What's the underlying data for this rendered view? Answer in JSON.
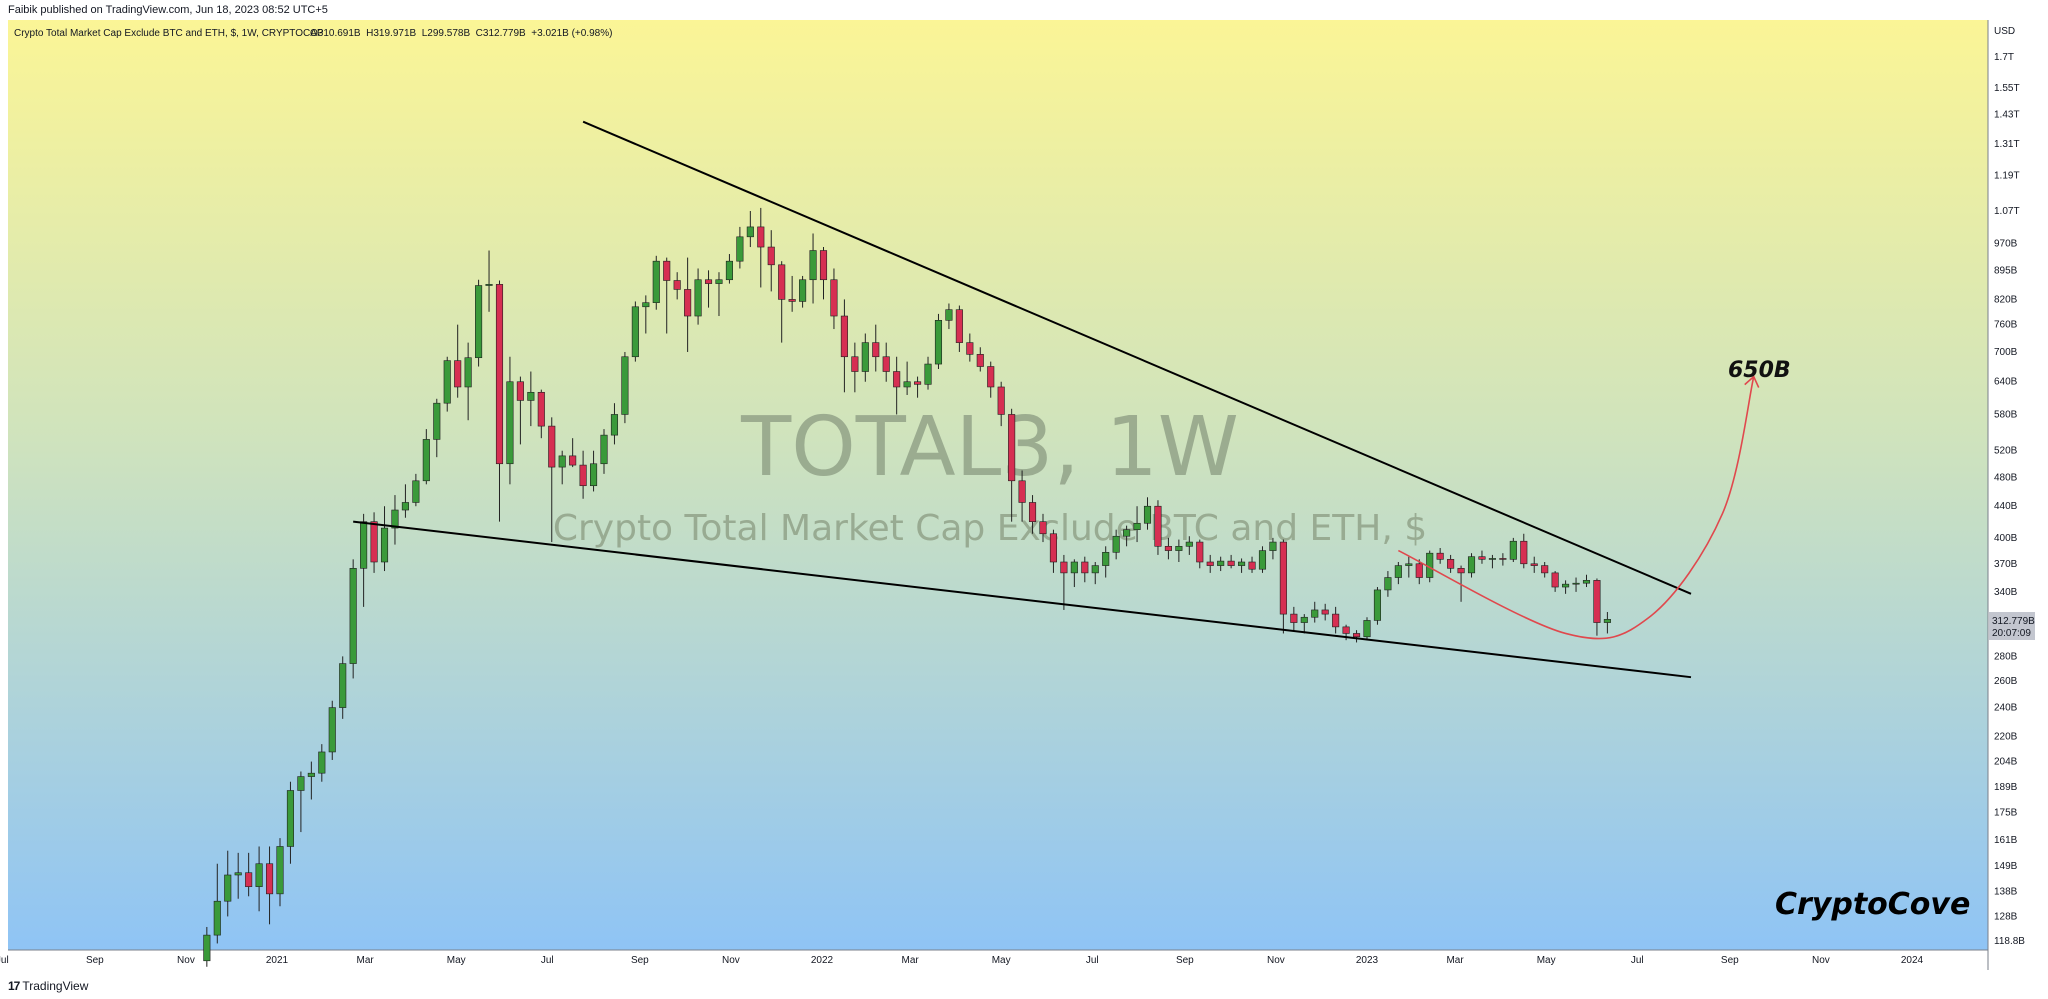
{
  "header": {
    "publisher": "Faibik published on TradingView.com, Jun 18, 2023 08:52 UTC+5"
  },
  "legend": {
    "symbol": "Crypto Total Market Cap Exclude BTC and ETH, $, 1W, CRYPTOCAP",
    "ohlc": "O310.691B  H319.971B  L299.578B  C312.779B  +3.021B (+0.98%)"
  },
  "watermark": {
    "ticker": "TOTAL3, 1W",
    "description": "Crypto Total Market Cap Exclude BTC and ETH, $"
  },
  "annotations": {
    "target": "650B",
    "brand": "CryptoCove"
  },
  "footer": {
    "logo_mark": "17",
    "logo_text": "TradingView"
  },
  "colors": {
    "up": "#3a9a3a",
    "down": "#d62f52",
    "curve": "#e0484d",
    "line": "#000000",
    "bg_top": "#fbf596",
    "bg_bottom": "#8fc4f5"
  },
  "chart_data": {
    "type": "candlestick",
    "title": "Crypto Total Market Cap Exclude BTC and ETH, $, 1W, CRYPTOCAP",
    "price_axis": {
      "unit": "USD",
      "scale": "log",
      "ticks": [
        "1.7T",
        "1.55T",
        "1.43T",
        "1.31T",
        "1.19T",
        "1.07T",
        "970B",
        "895B",
        "820B",
        "760B",
        "700B",
        "640B",
        "580B",
        "520B",
        "480B",
        "440B",
        "400B",
        "370B",
        "340B",
        "280B",
        "260B",
        "240B",
        "220B",
        "204B",
        "189B",
        "175B",
        "161B",
        "149B",
        "138B",
        "128B",
        "118.8B"
      ],
      "last_price": "312.779B",
      "countdown": "20:07:09"
    },
    "time_axis": {
      "ticks": [
        "Jul",
        "Sep",
        "Nov",
        "2021",
        "Mar",
        "May",
        "Jul",
        "Sep",
        "Nov",
        "2022",
        "Mar",
        "May",
        "Jul",
        "Sep",
        "Nov",
        "2023",
        "Mar",
        "May",
        "Jul",
        "Sep",
        "Nov",
        "2024"
      ]
    },
    "candles": [
      {
        "t": "2020-11-15",
        "o": 112,
        "h": 124,
        "l": 110,
        "c": 121
      },
      {
        "t": "2020-11-22",
        "o": 121,
        "h": 150,
        "l": 118,
        "c": 134
      },
      {
        "t": "2020-11-29",
        "o": 134,
        "h": 156,
        "l": 128,
        "c": 145
      },
      {
        "t": "2020-12-06",
        "o": 145,
        "h": 155,
        "l": 135,
        "c": 146
      },
      {
        "t": "2020-12-13",
        "o": 146,
        "h": 155,
        "l": 136,
        "c": 140
      },
      {
        "t": "2020-12-20",
        "o": 140,
        "h": 158,
        "l": 130,
        "c": 150
      },
      {
        "t": "2020-12-27",
        "o": 150,
        "h": 158,
        "l": 125,
        "c": 137
      },
      {
        "t": "2021-01-03",
        "o": 137,
        "h": 162,
        "l": 132,
        "c": 158
      },
      {
        "t": "2021-01-10",
        "o": 158,
        "h": 192,
        "l": 150,
        "c": 187
      },
      {
        "t": "2021-01-17",
        "o": 187,
        "h": 198,
        "l": 165,
        "c": 195
      },
      {
        "t": "2021-01-24",
        "o": 195,
        "h": 204,
        "l": 182,
        "c": 197
      },
      {
        "t": "2021-01-31",
        "o": 197,
        "h": 215,
        "l": 192,
        "c": 210
      },
      {
        "t": "2021-02-07",
        "o": 210,
        "h": 245,
        "l": 205,
        "c": 240
      },
      {
        "t": "2021-02-14",
        "o": 240,
        "h": 280,
        "l": 232,
        "c": 274
      },
      {
        "t": "2021-02-21",
        "o": 274,
        "h": 375,
        "l": 262,
        "c": 365
      },
      {
        "t": "2021-02-28",
        "o": 365,
        "h": 430,
        "l": 325,
        "c": 420
      },
      {
        "t": "2021-03-07",
        "o": 420,
        "h": 432,
        "l": 360,
        "c": 372
      },
      {
        "t": "2021-03-14",
        "o": 372,
        "h": 440,
        "l": 362,
        "c": 412
      },
      {
        "t": "2021-03-21",
        "o": 412,
        "h": 455,
        "l": 392,
        "c": 435
      },
      {
        "t": "2021-03-28",
        "o": 435,
        "h": 470,
        "l": 425,
        "c": 445
      },
      {
        "t": "2021-04-04",
        "o": 445,
        "h": 485,
        "l": 440,
        "c": 475
      },
      {
        "t": "2021-04-11",
        "o": 475,
        "h": 555,
        "l": 470,
        "c": 538
      },
      {
        "t": "2021-04-18",
        "o": 538,
        "h": 608,
        "l": 510,
        "c": 600
      },
      {
        "t": "2021-04-25",
        "o": 600,
        "h": 690,
        "l": 585,
        "c": 682
      },
      {
        "t": "2021-05-02",
        "o": 682,
        "h": 760,
        "l": 610,
        "c": 630
      },
      {
        "t": "2021-05-09",
        "o": 630,
        "h": 720,
        "l": 570,
        "c": 688
      },
      {
        "t": "2021-05-16",
        "o": 688,
        "h": 870,
        "l": 670,
        "c": 855
      },
      {
        "t": "2021-05-23",
        "o": 855,
        "h": 950,
        "l": 790,
        "c": 858
      },
      {
        "t": "2021-05-30",
        "o": 858,
        "h": 868,
        "l": 420,
        "c": 500
      },
      {
        "t": "2021-06-06",
        "o": 500,
        "h": 690,
        "l": 470,
        "c": 640
      },
      {
        "t": "2021-06-13",
        "o": 640,
        "h": 650,
        "l": 530,
        "c": 605
      },
      {
        "t": "2021-06-20",
        "o": 605,
        "h": 660,
        "l": 560,
        "c": 620
      },
      {
        "t": "2021-06-27",
        "o": 620,
        "h": 625,
        "l": 540,
        "c": 560
      },
      {
        "t": "2021-07-04",
        "o": 560,
        "h": 575,
        "l": 395,
        "c": 495
      },
      {
        "t": "2021-07-11",
        "o": 495,
        "h": 520,
        "l": 470,
        "c": 512
      },
      {
        "t": "2021-07-18",
        "o": 512,
        "h": 540,
        "l": 495,
        "c": 498
      },
      {
        "t": "2021-07-25",
        "o": 498,
        "h": 520,
        "l": 450,
        "c": 468
      },
      {
        "t": "2021-08-01",
        "o": 468,
        "h": 520,
        "l": 460,
        "c": 500
      },
      {
        "t": "2021-08-08",
        "o": 500,
        "h": 555,
        "l": 485,
        "c": 545
      },
      {
        "t": "2021-08-15",
        "o": 545,
        "h": 600,
        "l": 530,
        "c": 580
      },
      {
        "t": "2021-08-22",
        "o": 580,
        "h": 700,
        "l": 565,
        "c": 690
      },
      {
        "t": "2021-08-29",
        "o": 690,
        "h": 815,
        "l": 680,
        "c": 802
      },
      {
        "t": "2021-09-05",
        "o": 802,
        "h": 830,
        "l": 740,
        "c": 812
      },
      {
        "t": "2021-09-12",
        "o": 812,
        "h": 935,
        "l": 795,
        "c": 920
      },
      {
        "t": "2021-09-19",
        "o": 920,
        "h": 930,
        "l": 740,
        "c": 868
      },
      {
        "t": "2021-09-26",
        "o": 868,
        "h": 890,
        "l": 820,
        "c": 845
      },
      {
        "t": "2021-10-03",
        "o": 845,
        "h": 930,
        "l": 700,
        "c": 780
      },
      {
        "t": "2021-10-10",
        "o": 780,
        "h": 900,
        "l": 760,
        "c": 870
      },
      {
        "t": "2021-10-17",
        "o": 870,
        "h": 895,
        "l": 800,
        "c": 860
      },
      {
        "t": "2021-10-24",
        "o": 860,
        "h": 890,
        "l": 780,
        "c": 870
      },
      {
        "t": "2021-10-31",
        "o": 870,
        "h": 940,
        "l": 860,
        "c": 920
      },
      {
        "t": "2021-11-07",
        "o": 920,
        "h": 1020,
        "l": 900,
        "c": 990
      },
      {
        "t": "2021-11-14",
        "o": 990,
        "h": 1070,
        "l": 960,
        "c": 1020
      },
      {
        "t": "2021-11-21",
        "o": 1020,
        "h": 1080,
        "l": 850,
        "c": 960
      },
      {
        "t": "2021-11-28",
        "o": 960,
        "h": 1010,
        "l": 840,
        "c": 910
      },
      {
        "t": "2021-12-05",
        "o": 910,
        "h": 920,
        "l": 720,
        "c": 820
      },
      {
        "t": "2021-12-12",
        "o": 820,
        "h": 880,
        "l": 790,
        "c": 815
      },
      {
        "t": "2021-12-19",
        "o": 815,
        "h": 880,
        "l": 800,
        "c": 870
      },
      {
        "t": "2021-12-26",
        "o": 870,
        "h": 1000,
        "l": 810,
        "c": 950
      },
      {
        "t": "2022-01-02",
        "o": 950,
        "h": 960,
        "l": 820,
        "c": 870
      },
      {
        "t": "2022-01-09",
        "o": 870,
        "h": 900,
        "l": 750,
        "c": 780
      },
      {
        "t": "2022-01-16",
        "o": 780,
        "h": 820,
        "l": 620,
        "c": 690
      },
      {
        "t": "2022-01-23",
        "o": 690,
        "h": 720,
        "l": 620,
        "c": 660
      },
      {
        "t": "2022-01-30",
        "o": 660,
        "h": 740,
        "l": 640,
        "c": 720
      },
      {
        "t": "2022-02-06",
        "o": 720,
        "h": 760,
        "l": 660,
        "c": 690
      },
      {
        "t": "2022-02-13",
        "o": 690,
        "h": 720,
        "l": 640,
        "c": 660
      },
      {
        "t": "2022-02-20",
        "o": 660,
        "h": 690,
        "l": 580,
        "c": 630
      },
      {
        "t": "2022-02-27",
        "o": 630,
        "h": 680,
        "l": 615,
        "c": 640
      },
      {
        "t": "2022-03-06",
        "o": 640,
        "h": 650,
        "l": 610,
        "c": 635
      },
      {
        "t": "2022-03-13",
        "o": 635,
        "h": 690,
        "l": 625,
        "c": 675
      },
      {
        "t": "2022-03-20",
        "o": 675,
        "h": 785,
        "l": 665,
        "c": 770
      },
      {
        "t": "2022-03-27",
        "o": 770,
        "h": 810,
        "l": 750,
        "c": 795
      },
      {
        "t": "2022-04-03",
        "o": 795,
        "h": 805,
        "l": 700,
        "c": 720
      },
      {
        "t": "2022-04-10",
        "o": 720,
        "h": 740,
        "l": 680,
        "c": 695
      },
      {
        "t": "2022-04-17",
        "o": 695,
        "h": 710,
        "l": 660,
        "c": 670
      },
      {
        "t": "2022-04-24",
        "o": 670,
        "h": 680,
        "l": 610,
        "c": 630
      },
      {
        "t": "2022-05-01",
        "o": 630,
        "h": 640,
        "l": 560,
        "c": 580
      },
      {
        "t": "2022-05-08",
        "o": 580,
        "h": 590,
        "l": 420,
        "c": 475
      },
      {
        "t": "2022-05-15",
        "o": 475,
        "h": 490,
        "l": 420,
        "c": 445
      },
      {
        "t": "2022-05-22",
        "o": 445,
        "h": 455,
        "l": 405,
        "c": 420
      },
      {
        "t": "2022-05-29",
        "o": 420,
        "h": 430,
        "l": 395,
        "c": 405
      },
      {
        "t": "2022-06-05",
        "o": 405,
        "h": 410,
        "l": 360,
        "c": 372
      },
      {
        "t": "2022-06-12",
        "o": 372,
        "h": 380,
        "l": 322,
        "c": 360
      },
      {
        "t": "2022-06-19",
        "o": 360,
        "h": 375,
        "l": 345,
        "c": 372
      },
      {
        "t": "2022-06-26",
        "o": 372,
        "h": 378,
        "l": 350,
        "c": 360
      },
      {
        "t": "2022-07-03",
        "o": 360,
        "h": 372,
        "l": 348,
        "c": 368
      },
      {
        "t": "2022-07-10",
        "o": 368,
        "h": 390,
        "l": 355,
        "c": 383
      },
      {
        "t": "2022-07-17",
        "o": 383,
        "h": 410,
        "l": 375,
        "c": 402
      },
      {
        "t": "2022-07-24",
        "o": 402,
        "h": 415,
        "l": 390,
        "c": 410
      },
      {
        "t": "2022-07-31",
        "o": 410,
        "h": 440,
        "l": 395,
        "c": 418
      },
      {
        "t": "2022-08-07",
        "o": 418,
        "h": 452,
        "l": 410,
        "c": 440
      },
      {
        "t": "2022-08-14",
        "o": 440,
        "h": 448,
        "l": 380,
        "c": 390
      },
      {
        "t": "2022-08-21",
        "o": 390,
        "h": 400,
        "l": 375,
        "c": 385
      },
      {
        "t": "2022-08-28",
        "o": 385,
        "h": 398,
        "l": 372,
        "c": 390
      },
      {
        "t": "2022-09-04",
        "o": 390,
        "h": 402,
        "l": 380,
        "c": 395
      },
      {
        "t": "2022-09-11",
        "o": 395,
        "h": 398,
        "l": 365,
        "c": 372
      },
      {
        "t": "2022-09-18",
        "o": 372,
        "h": 380,
        "l": 360,
        "c": 368
      },
      {
        "t": "2022-09-25",
        "o": 368,
        "h": 378,
        "l": 362,
        "c": 373
      },
      {
        "t": "2022-10-02",
        "o": 373,
        "h": 380,
        "l": 365,
        "c": 368
      },
      {
        "t": "2022-10-09",
        "o": 368,
        "h": 376,
        "l": 360,
        "c": 372
      },
      {
        "t": "2022-10-16",
        "o": 372,
        "h": 378,
        "l": 360,
        "c": 364
      },
      {
        "t": "2022-10-23",
        "o": 364,
        "h": 390,
        "l": 360,
        "c": 385
      },
      {
        "t": "2022-10-30",
        "o": 385,
        "h": 400,
        "l": 375,
        "c": 395
      },
      {
        "t": "2022-11-06",
        "o": 395,
        "h": 398,
        "l": 300,
        "c": 318
      },
      {
        "t": "2022-11-13",
        "o": 318,
        "h": 325,
        "l": 302,
        "c": 310
      },
      {
        "t": "2022-11-20",
        "o": 310,
        "h": 318,
        "l": 300,
        "c": 315
      },
      {
        "t": "2022-11-27",
        "o": 315,
        "h": 330,
        "l": 310,
        "c": 322
      },
      {
        "t": "2022-12-04",
        "o": 322,
        "h": 328,
        "l": 312,
        "c": 318
      },
      {
        "t": "2022-12-11",
        "o": 318,
        "h": 325,
        "l": 300,
        "c": 306
      },
      {
        "t": "2022-12-18",
        "o": 306,
        "h": 308,
        "l": 294,
        "c": 300
      },
      {
        "t": "2022-12-25",
        "o": 300,
        "h": 303,
        "l": 292,
        "c": 297
      },
      {
        "t": "2023-01-01",
        "o": 297,
        "h": 315,
        "l": 294,
        "c": 312
      },
      {
        "t": "2023-01-08",
        "o": 312,
        "h": 345,
        "l": 308,
        "c": 342
      },
      {
        "t": "2023-01-15",
        "o": 342,
        "h": 362,
        "l": 335,
        "c": 355
      },
      {
        "t": "2023-01-22",
        "o": 355,
        "h": 372,
        "l": 348,
        "c": 368
      },
      {
        "t": "2023-01-29",
        "o": 368,
        "h": 378,
        "l": 355,
        "c": 370
      },
      {
        "t": "2023-02-05",
        "o": 370,
        "h": 375,
        "l": 348,
        "c": 355
      },
      {
        "t": "2023-02-12",
        "o": 355,
        "h": 385,
        "l": 350,
        "c": 382
      },
      {
        "t": "2023-02-19",
        "o": 382,
        "h": 388,
        "l": 370,
        "c": 375
      },
      {
        "t": "2023-02-26",
        "o": 375,
        "h": 380,
        "l": 360,
        "c": 365
      },
      {
        "t": "2023-03-05",
        "o": 365,
        "h": 368,
        "l": 330,
        "c": 360
      },
      {
        "t": "2023-03-12",
        "o": 360,
        "h": 382,
        "l": 355,
        "c": 378
      },
      {
        "t": "2023-03-19",
        "o": 378,
        "h": 385,
        "l": 370,
        "c": 375
      },
      {
        "t": "2023-03-26",
        "o": 375,
        "h": 380,
        "l": 365,
        "c": 376
      },
      {
        "t": "2023-04-02",
        "o": 376,
        "h": 382,
        "l": 368,
        "c": 375
      },
      {
        "t": "2023-04-09",
        "o": 375,
        "h": 400,
        "l": 372,
        "c": 396
      },
      {
        "t": "2023-04-16",
        "o": 396,
        "h": 405,
        "l": 365,
        "c": 370
      },
      {
        "t": "2023-04-23",
        "o": 370,
        "h": 378,
        "l": 360,
        "c": 368
      },
      {
        "t": "2023-04-30",
        "o": 368,
        "h": 372,
        "l": 355,
        "c": 360
      },
      {
        "t": "2023-05-07",
        "o": 360,
        "h": 362,
        "l": 340,
        "c": 345
      },
      {
        "t": "2023-05-14",
        "o": 345,
        "h": 352,
        "l": 338,
        "c": 348
      },
      {
        "t": "2023-05-21",
        "o": 348,
        "h": 355,
        "l": 340,
        "c": 349
      },
      {
        "t": "2023-05-28",
        "o": 349,
        "h": 358,
        "l": 345,
        "c": 352
      },
      {
        "t": "2023-06-04",
        "o": 352,
        "h": 354,
        "l": 298,
        "c": 310
      },
      {
        "t": "2023-06-11",
        "o": 310,
        "h": 320,
        "l": 300,
        "c": 313
      }
    ],
    "trendlines": [
      {
        "name": "upper",
        "from": {
          "t": "2021-07-25",
          "p": 1400
        },
        "to": {
          "t": "2023-08-06",
          "p": 338
        }
      },
      {
        "name": "lower",
        "from": {
          "t": "2021-02-21",
          "p": 420
        },
        "to": {
          "t": "2023-08-06",
          "p": 263
        }
      }
    ],
    "projection": {
      "label": "650B",
      "points": [
        {
          "t": "2023-01-22",
          "p": 385
        },
        {
          "t": "2023-05-14",
          "p": 300
        },
        {
          "t": "2023-07-09",
          "p": 315
        },
        {
          "t": "2023-08-27",
          "p": 430
        },
        {
          "t": "2023-09-17",
          "p": 650
        }
      ]
    }
  }
}
